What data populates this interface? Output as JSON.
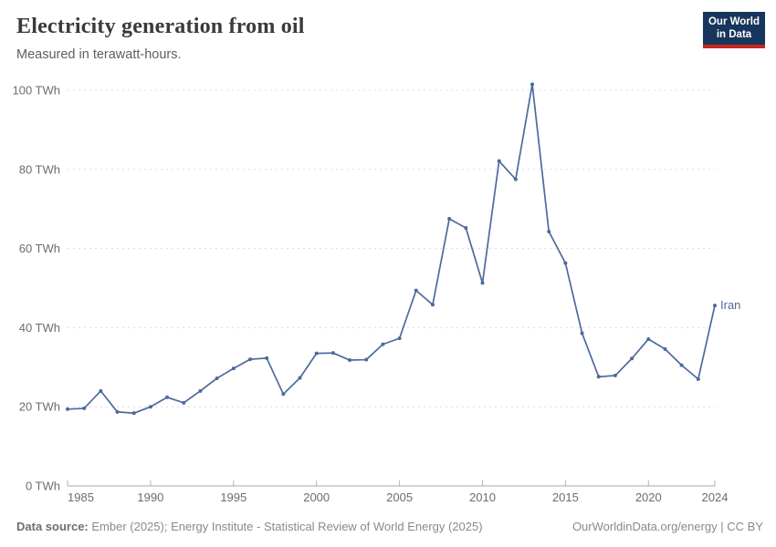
{
  "header": {
    "title": "Electricity generation from oil",
    "subtitle": "Measured in terawatt-hours."
  },
  "logo": {
    "line1": "Our World",
    "line2": "in Data",
    "bg_color": "#18365d",
    "accent_color": "#c5281c"
  },
  "chart_data": {
    "type": "line",
    "title": "Electricity generation from oil",
    "unit": "TWh",
    "grid": "dashed-horizontal-only",
    "legend_position": "end-of-line",
    "xlim": [
      1985,
      2024
    ],
    "ylim": [
      0,
      100
    ],
    "x_ticks": [
      1985,
      1990,
      1995,
      2000,
      2005,
      2010,
      2015,
      2020,
      2024
    ],
    "y_ticks": [
      0,
      20,
      40,
      60,
      80,
      100
    ],
    "x": [
      1985,
      1986,
      1987,
      1988,
      1989,
      1990,
      1991,
      1992,
      1993,
      1994,
      1995,
      1996,
      1997,
      1998,
      1999,
      2000,
      2001,
      2002,
      2003,
      2004,
      2005,
      2006,
      2007,
      2008,
      2009,
      2010,
      2011,
      2012,
      2013,
      2014,
      2015,
      2016,
      2017,
      2018,
      2019,
      2020,
      2021,
      2022,
      2023,
      2024
    ],
    "series": [
      {
        "name": "Iran",
        "color": "#4c6a9c",
        "values": [
          19.4,
          19.6,
          24.0,
          18.7,
          18.4,
          20.0,
          22.4,
          21.0,
          24.0,
          27.2,
          29.7,
          32.0,
          32.3,
          23.2,
          27.3,
          33.5,
          33.6,
          31.8,
          31.9,
          35.8,
          37.3,
          49.4,
          45.8,
          67.5,
          65.2,
          51.3,
          82.1,
          77.5,
          101.5,
          64.3,
          56.3,
          38.6,
          27.6,
          27.9,
          32.2,
          37.1,
          34.6,
          30.5,
          27.0,
          45.6
        ]
      }
    ]
  },
  "footer": {
    "source_label": "Data source:",
    "source_text": " Ember (2025); Energy Institute - Statistical Review of World Energy (2025)",
    "link_text": "OurWorldinData.org/energy | CC BY"
  }
}
